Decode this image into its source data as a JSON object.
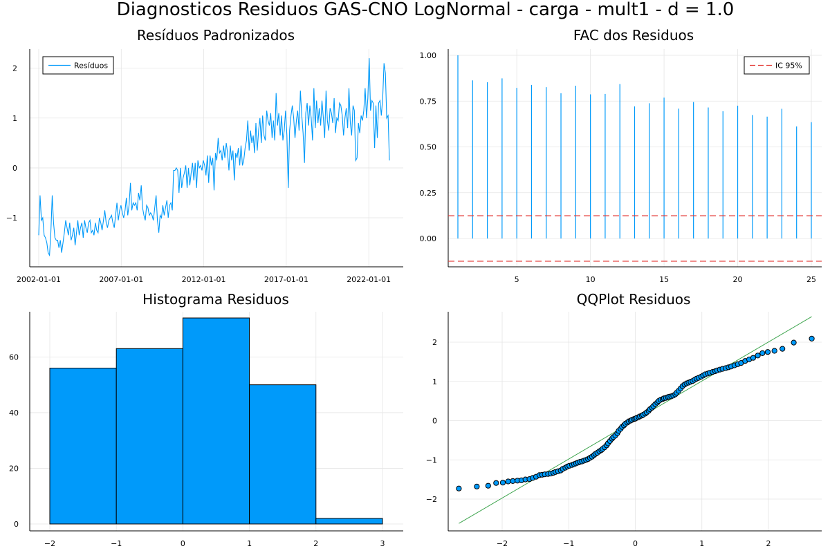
{
  "suptitle": "Diagnosticos Residuos  GAS-CNO LogNormal - carga - mult1 - d = 1.0",
  "colors": {
    "series": "#009AFA",
    "ci": "#E33430",
    "ref_line": "#3DA44D",
    "grid": "#E5E5E5",
    "axis": "#000000"
  },
  "chart_data": [
    {
      "type": "line",
      "title": "Resíduos Padronizados",
      "legend": "top-left",
      "grid": true,
      "series": [
        {
          "name": "Resíduos",
          "x_start": "2002-01-01",
          "frequency": "monthly",
          "values": [
            -1.35,
            -0.55,
            -1.05,
            -1.0,
            -1.35,
            -1.4,
            -1.5,
            -1.7,
            -1.75,
            -1.3,
            -0.55,
            -1.1,
            -1.4,
            -1.45,
            -1.45,
            -1.6,
            -1.45,
            -1.7,
            -1.5,
            -1.3,
            -1.05,
            -1.2,
            -1.35,
            -1.1,
            -1.45,
            -1.35,
            -1.2,
            -1.55,
            -1.3,
            -1.05,
            -1.35,
            -1.2,
            -1.1,
            -1.4,
            -1.05,
            -1.2,
            -1.3,
            -1.1,
            -1.05,
            -1.3,
            -1.25,
            -1.35,
            -1.1,
            -1.25,
            -1.3,
            -1.0,
            -1.1,
            -1.25,
            -1.05,
            -0.85,
            -1.1,
            -1.2,
            -1.05,
            -1.0,
            -0.95,
            -1.1,
            -1.2,
            -0.95,
            -0.7,
            -1.05,
            -0.85,
            -0.75,
            -0.9,
            -1.0,
            -0.85,
            -0.6,
            -0.95,
            -0.75,
            -0.3,
            -0.85,
            -0.7,
            -0.75,
            -0.7,
            -0.85,
            -0.5,
            -0.65,
            -0.35,
            -0.8,
            -0.95,
            -1.05,
            -0.75,
            -0.8,
            -0.95,
            -0.9,
            -0.95,
            -1.05,
            -0.8,
            -0.55,
            -1.05,
            -1.3,
            -0.95,
            -1.0,
            -0.75,
            -0.95,
            -0.8,
            -0.65,
            -1.0,
            -0.75,
            -0.7,
            -0.85,
            -0.05,
            -0.05,
            -0.0,
            -0.05,
            -0.5,
            -0.0,
            -0.4,
            -0.2,
            -0.1,
            0.05,
            -0.4,
            -0.0,
            -0.35,
            -0.1,
            0.1,
            -0.25,
            0.1,
            -0.4,
            0.15,
            0.0,
            0.05,
            -0.05,
            0.15,
            0.05,
            -0.15,
            0.25,
            -0.3,
            0.25,
            0.05,
            0.2,
            -0.45,
            0.3,
            0.15,
            0.6,
            0.3,
            0.35,
            0.15,
            0.45,
            0.2,
            0.5,
            0.3,
            -0.05,
            0.45,
            0.15,
            0.35,
            -0.25,
            0.3,
            0.2,
            0.4,
            0.05,
            0.45,
            0.05,
            0.15,
            0.4,
            0.55,
            0.95,
            0.35,
            0.75,
            0.5,
            0.65,
            0.3,
            0.9,
            0.35,
            0.75,
            1.0,
            0.5,
            1.05,
            0.65,
            0.55,
            1.15,
            0.95,
            0.85,
            1.1,
            0.6,
            0.95,
            0.55,
            1.5,
            0.85,
            1.1,
            0.65,
            1.05,
            0.55,
            0.75,
            1.15,
            0.65,
            -0.4,
            0.75,
            1.05,
            1.25,
            1.0,
            0.6,
            0.95,
            1.15,
            0.75,
            1.55,
            1.05,
            0.7,
            0.1,
            1.1,
            1.3,
            0.85,
            1.25,
            1.0,
            0.55,
            1.6,
            0.8,
            1.35,
            0.9,
            1.2,
            0.85,
            1.35,
            1.0,
            0.6,
            1.55,
            0.95,
            0.75,
            1.2,
            1.1,
            0.9,
            1.4,
            0.7,
            1.0,
            0.95,
            1.3,
            1.25,
            1.05,
            0.65,
            1.0,
            1.2,
            0.8,
            1.6,
            0.9,
            0.65,
            1.25,
            1.15,
            0.15,
            0.2,
            0.9,
            0.7,
            1.05,
            0.95,
            1.15,
            1.6,
            1.0,
            1.4,
            2.2,
            1.15,
            1.35,
            1.3,
            0.4,
            1.25,
            0.6,
            1.3,
            1.35,
            1.05,
            1.4,
            2.1,
            1.9,
            1.0,
            1.05,
            0.15
          ],
          "x_axis_dates": true
        }
      ],
      "x_ticks": [
        "2002-01-01",
        "2007-01-01",
        "2012-01-01",
        "2017-01-01",
        "2022-01-01"
      ],
      "y_ticks": [
        2,
        1,
        0,
        -1
      ],
      "y_tick_labels": [
        "2",
        "1",
        "0",
        "−1"
      ]
    },
    {
      "type": "bar",
      "subtype": "stem",
      "title": "FAC dos Residuos",
      "legend": "top-right",
      "grid": true,
      "x": [
        1,
        2,
        3,
        4,
        5,
        6,
        7,
        8,
        9,
        10,
        11,
        12,
        13,
        14,
        15,
        16,
        17,
        18,
        19,
        20,
        21,
        22,
        23,
        24,
        25
      ],
      "values": [
        1.0,
        0.863,
        0.853,
        0.874,
        0.822,
        0.838,
        0.826,
        0.793,
        0.834,
        0.787,
        0.789,
        0.843,
        0.721,
        0.738,
        0.769,
        0.709,
        0.745,
        0.715,
        0.695,
        0.725,
        0.674,
        0.665,
        0.708,
        0.612,
        0.635
      ],
      "ci": {
        "name": "IC 95%",
        "upper": 0.124,
        "lower": -0.124
      },
      "x_ticks": [
        5,
        10,
        15,
        20,
        25
      ],
      "y_ticks": [
        1.0,
        0.75,
        0.5,
        0.25,
        0.0
      ],
      "y_tick_labels": [
        "1.00",
        "0.75",
        "0.50",
        "0.25",
        "0.00"
      ]
    },
    {
      "type": "bar",
      "subtype": "histogram",
      "title": "Histograma Residuos",
      "grid": true,
      "bin_edges": [
        -2,
        -1,
        0,
        1,
        2,
        3
      ],
      "counts": [
        56,
        63,
        74,
        50,
        2
      ],
      "x_ticks": [
        -2,
        -1,
        0,
        1,
        2,
        3
      ],
      "x_tick_labels": [
        "−2",
        "−1",
        "0",
        "1",
        "2",
        "3"
      ],
      "y_ticks": [
        0,
        20,
        40,
        60
      ],
      "y_tick_labels": [
        "0",
        "20",
        "40",
        "60"
      ]
    },
    {
      "type": "scatter",
      "title": "QQPlot Residuos",
      "grid": true,
      "points": [
        [
          -2.65,
          -1.73
        ],
        [
          -2.38,
          -1.68
        ],
        [
          -2.21,
          -1.66
        ],
        [
          -2.09,
          -1.59
        ],
        [
          -1.99,
          -1.58
        ],
        [
          -1.91,
          -1.55
        ],
        [
          -1.84,
          -1.54
        ],
        [
          -1.77,
          -1.53
        ],
        [
          -1.71,
          -1.52
        ],
        [
          -1.65,
          -1.5
        ],
        [
          -1.59,
          -1.49
        ],
        [
          -1.54,
          -1.46
        ],
        [
          -1.49,
          -1.43
        ],
        [
          -1.44,
          -1.39
        ],
        [
          -1.4,
          -1.38
        ],
        [
          -1.36,
          -1.37
        ],
        [
          -1.31,
          -1.36
        ],
        [
          -1.27,
          -1.35
        ],
        [
          -1.23,
          -1.33
        ],
        [
          -1.2,
          -1.31
        ],
        [
          -1.16,
          -1.29
        ],
        [
          -1.12,
          -1.27
        ],
        [
          -1.09,
          -1.23
        ],
        [
          -1.05,
          -1.2
        ],
        [
          -1.02,
          -1.17
        ],
        [
          -0.99,
          -1.15
        ],
        [
          -0.95,
          -1.13
        ],
        [
          -0.92,
          -1.11
        ],
        [
          -0.89,
          -1.09
        ],
        [
          -0.86,
          -1.07
        ],
        [
          -0.83,
          -1.05
        ],
        [
          -0.8,
          -1.04
        ],
        [
          -0.77,
          -1.02
        ],
        [
          -0.74,
          -1.0
        ],
        [
          -0.71,
          -0.98
        ],
        [
          -0.68,
          -0.95
        ],
        [
          -0.65,
          -0.92
        ],
        [
          -0.62,
          -0.88
        ],
        [
          -0.6,
          -0.85
        ],
        [
          -0.57,
          -0.82
        ],
        [
          -0.54,
          -0.78
        ],
        [
          -0.51,
          -0.75
        ],
        [
          -0.49,
          -0.72
        ],
        [
          -0.46,
          -0.68
        ],
        [
          -0.43,
          -0.63
        ],
        [
          -0.41,
          -0.58
        ],
        [
          -0.38,
          -0.52
        ],
        [
          -0.35,
          -0.46
        ],
        [
          -0.33,
          -0.42
        ],
        [
          -0.3,
          -0.38
        ],
        [
          -0.27,
          -0.32
        ],
        [
          -0.25,
          -0.26
        ],
        [
          -0.22,
          -0.21
        ],
        [
          -0.2,
          -0.16
        ],
        [
          -0.17,
          -0.12
        ],
        [
          -0.15,
          -0.08
        ],
        [
          -0.12,
          -0.05
        ],
        [
          -0.1,
          -0.02
        ],
        [
          -0.07,
          0.0
        ],
        [
          -0.05,
          0.02
        ],
        [
          -0.02,
          0.04
        ],
        [
          0.0,
          0.05
        ],
        [
          0.02,
          0.07
        ],
        [
          0.05,
          0.09
        ],
        [
          0.07,
          0.11
        ],
        [
          0.1,
          0.13
        ],
        [
          0.12,
          0.15
        ],
        [
          0.15,
          0.18
        ],
        [
          0.17,
          0.21
        ],
        [
          0.2,
          0.25
        ],
        [
          0.22,
          0.29
        ],
        [
          0.25,
          0.33
        ],
        [
          0.27,
          0.37
        ],
        [
          0.3,
          0.42
        ],
        [
          0.33,
          0.46
        ],
        [
          0.35,
          0.5
        ],
        [
          0.38,
          0.53
        ],
        [
          0.41,
          0.55
        ],
        [
          0.43,
          0.57
        ],
        [
          0.46,
          0.58
        ],
        [
          0.49,
          0.6
        ],
        [
          0.51,
          0.61
        ],
        [
          0.54,
          0.62
        ],
        [
          0.57,
          0.64
        ],
        [
          0.6,
          0.67
        ],
        [
          0.62,
          0.71
        ],
        [
          0.65,
          0.76
        ],
        [
          0.68,
          0.82
        ],
        [
          0.71,
          0.88
        ],
        [
          0.74,
          0.92
        ],
        [
          0.77,
          0.95
        ],
        [
          0.8,
          0.97
        ],
        [
          0.83,
          0.99
        ],
        [
          0.86,
          1.01
        ],
        [
          0.89,
          1.04
        ],
        [
          0.92,
          1.07
        ],
        [
          0.95,
          1.09
        ],
        [
          0.99,
          1.12
        ],
        [
          1.02,
          1.15
        ],
        [
          1.05,
          1.18
        ],
        [
          1.09,
          1.2
        ],
        [
          1.12,
          1.22
        ],
        [
          1.16,
          1.24
        ],
        [
          1.2,
          1.26
        ],
        [
          1.23,
          1.28
        ],
        [
          1.27,
          1.3
        ],
        [
          1.31,
          1.32
        ],
        [
          1.36,
          1.34
        ],
        [
          1.4,
          1.36
        ],
        [
          1.44,
          1.38
        ],
        [
          1.49,
          1.41
        ],
        [
          1.54,
          1.44
        ],
        [
          1.59,
          1.47
        ],
        [
          1.65,
          1.52
        ],
        [
          1.71,
          1.56
        ],
        [
          1.77,
          1.6
        ],
        [
          1.84,
          1.66
        ],
        [
          1.91,
          1.72
        ],
        [
          1.99,
          1.75
        ],
        [
          2.09,
          1.78
        ],
        [
          2.21,
          1.83
        ],
        [
          2.38,
          1.99
        ],
        [
          2.65,
          2.09
        ]
      ],
      "reference_line": {
        "x": [
          -2.65,
          2.65
        ],
        "y": [
          -2.62,
          2.65
        ]
      },
      "x_ticks": [
        -2,
        -1,
        0,
        1,
        2
      ],
      "x_tick_labels": [
        "−2",
        "−1",
        "0",
        "1",
        "2"
      ],
      "y_ticks": [
        2,
        1,
        0,
        -1,
        -2
      ],
      "y_tick_labels": [
        "2",
        "1",
        "0",
        "−1",
        "−2"
      ]
    }
  ]
}
